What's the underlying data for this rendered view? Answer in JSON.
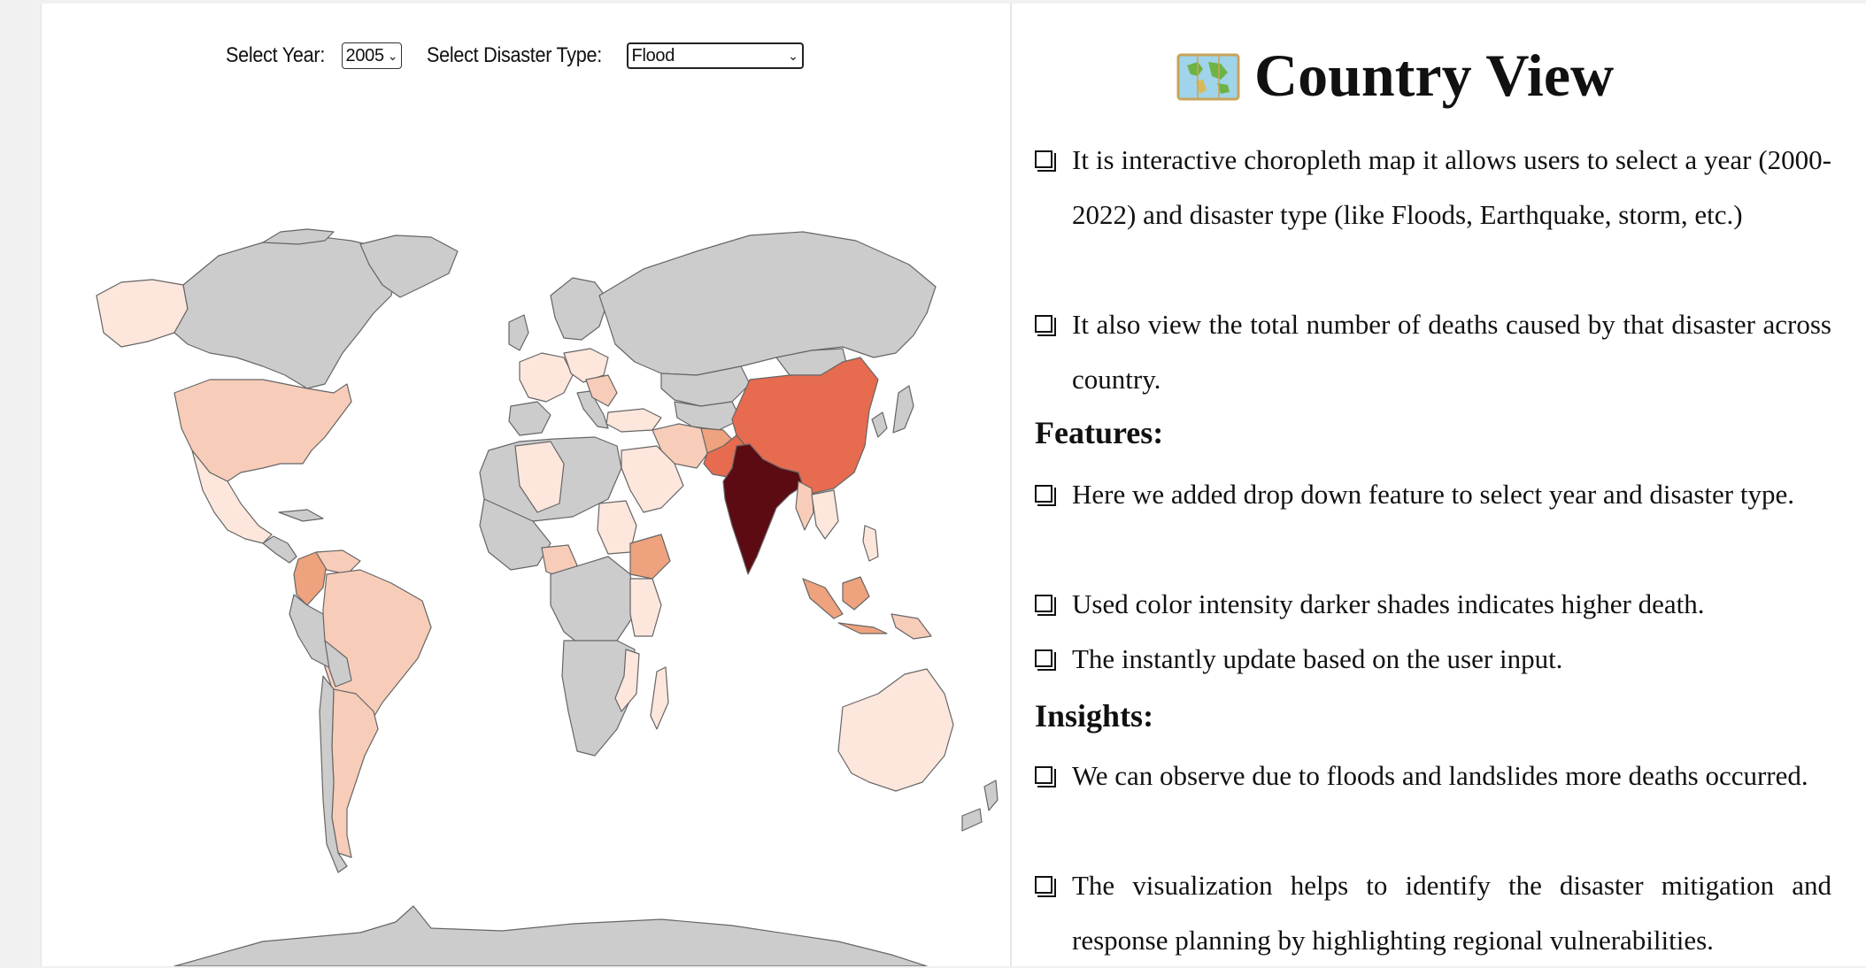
{
  "controls": {
    "year_label": "Select Year:",
    "year_value": "2005",
    "type_label": "Select Disaster Type:",
    "type_value": "Flood"
  },
  "map": {
    "colors": {
      "no_data": "#cccccc",
      "very_light": "#fde6dc",
      "light": "#f7cdb9",
      "medium": "#eea27d",
      "strong": "#e66b4f",
      "darkest": "#5c0b12",
      "border": "#666666"
    },
    "countries_with_deaths": [
      "India",
      "China",
      "Colombia",
      "Ethiopia",
      "Pakistan",
      "Indonesia",
      "Australia",
      "United States",
      "Brazil"
    ]
  },
  "panel": {
    "title": "Country View",
    "title_icon": "world-map-icon",
    "intro": [
      "It is interactive choropleth map it allows users to select a year (2000-2022) and disaster type (like Floods, Earthquake, storm, etc.)",
      "It also view the total number of deaths caused by that disaster across country."
    ],
    "features_heading": "Features:",
    "features": [
      "Here we added drop down feature to select year and disaster type.",
      "Used color intensity darker shades indicates higher death.",
      "The instantly update based on the user input."
    ],
    "insights_heading": "Insights:",
    "insights": [
      "We can observe due to floods and landslides more deaths occurred.",
      "The visualization helps to identify the disaster mitigation and response planning by highlighting regional vulnerabilities."
    ]
  }
}
